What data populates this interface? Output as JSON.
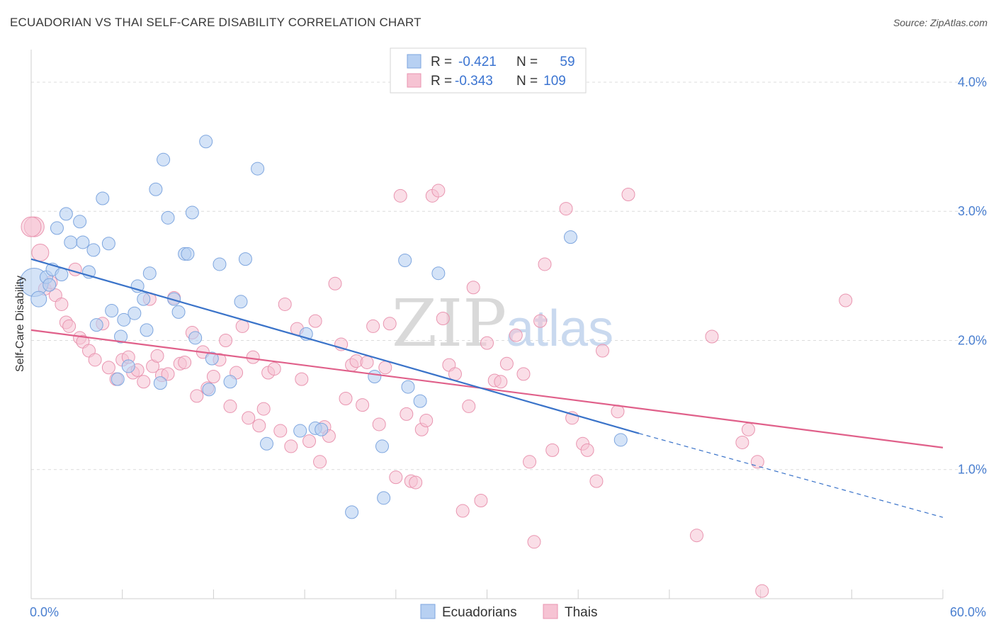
{
  "header": {
    "title": "ECUADORIAN VS THAI SELF-CARE DISABILITY CORRELATION CHART",
    "source": "Source: ZipAtlas.com"
  },
  "legend_top": {
    "rows": [
      {
        "r_label": "R =",
        "r_value": "-0.421",
        "n_label": "N =",
        "n_value": "59"
      },
      {
        "r_label": "R =",
        "r_value": "-0.343",
        "n_label": "N =",
        "n_value": "109"
      }
    ]
  },
  "legend_bottom": {
    "items": [
      "Ecuadorians",
      "Thais"
    ]
  },
  "watermark": {
    "zip": "ZIP",
    "atlas": "atlas"
  },
  "colors": {
    "blue_fill": "#b7d0f2",
    "blue_stroke": "#7ea6df",
    "blue_line": "#3a73c9",
    "pink_fill": "#f6c3d3",
    "pink_stroke": "#e995b0",
    "pink_line": "#e0608a",
    "grid": "#dcdcdc",
    "tick_label": "#4a7fd0"
  },
  "chart_data": {
    "type": "scatter",
    "title": "ECUADORIAN VS THAI SELF-CARE DISABILITY CORRELATION CHART",
    "xlabel": "",
    "ylabel": "Self-Care Disability",
    "xlim": [
      0,
      60
    ],
    "ylim": [
      0,
      4.2
    ],
    "x_tick_labels": [
      "0.0%",
      "60.0%"
    ],
    "y_ticks": [
      1.0,
      2.0,
      3.0,
      4.0
    ],
    "y_tick_labels": [
      "1.0%",
      "2.0%",
      "3.0%",
      "4.0%"
    ],
    "grid": "horizontal dashed",
    "legend_position": "top-center",
    "series": [
      {
        "name": "Ecuadorians",
        "R": -0.421,
        "N": 59,
        "trend": {
          "x0": 0,
          "y0": 2.63,
          "x1": 40,
          "y1": 1.28,
          "dashed_to_x": 60,
          "dashed_to_y": 0.63
        },
        "points": [
          [
            0.2,
            2.45
          ],
          [
            0.5,
            2.32
          ],
          [
            1.0,
            2.49
          ],
          [
            1.2,
            2.43
          ],
          [
            1.4,
            2.55
          ],
          [
            1.7,
            2.87
          ],
          [
            2.0,
            2.51
          ],
          [
            2.3,
            2.98
          ],
          [
            2.6,
            2.76
          ],
          [
            3.2,
            2.92
          ],
          [
            3.4,
            2.76
          ],
          [
            3.8,
            2.53
          ],
          [
            4.1,
            2.7
          ],
          [
            4.3,
            2.12
          ],
          [
            4.7,
            3.1
          ],
          [
            5.1,
            2.75
          ],
          [
            5.3,
            2.23
          ],
          [
            5.7,
            1.7
          ],
          [
            5.9,
            2.03
          ],
          [
            6.1,
            2.16
          ],
          [
            6.4,
            1.8
          ],
          [
            6.8,
            2.21
          ],
          [
            7.0,
            2.42
          ],
          [
            7.4,
            2.32
          ],
          [
            7.6,
            2.08
          ],
          [
            7.8,
            2.52
          ],
          [
            8.2,
            3.17
          ],
          [
            8.5,
            1.67
          ],
          [
            8.7,
            3.4
          ],
          [
            9.0,
            2.95
          ],
          [
            9.4,
            2.32
          ],
          [
            9.7,
            2.22
          ],
          [
            10.1,
            2.67
          ],
          [
            10.3,
            2.67
          ],
          [
            10.6,
            2.99
          ],
          [
            10.8,
            2.02
          ],
          [
            11.5,
            3.54
          ],
          [
            11.7,
            1.62
          ],
          [
            11.9,
            1.86
          ],
          [
            12.4,
            2.59
          ],
          [
            13.1,
            1.68
          ],
          [
            13.8,
            2.3
          ],
          [
            14.1,
            2.63
          ],
          [
            14.9,
            3.33
          ],
          [
            15.5,
            1.2
          ],
          [
            17.7,
            1.3
          ],
          [
            18.1,
            2.05
          ],
          [
            18.7,
            1.32
          ],
          [
            19.1,
            1.31
          ],
          [
            21.1,
            0.67
          ],
          [
            22.6,
            1.72
          ],
          [
            23.1,
            1.18
          ],
          [
            23.2,
            0.78
          ],
          [
            24.6,
            2.62
          ],
          [
            24.8,
            1.64
          ],
          [
            25.6,
            1.53
          ],
          [
            26.8,
            2.52
          ],
          [
            35.5,
            2.8
          ],
          [
            38.8,
            1.23
          ]
        ]
      },
      {
        "name": "Thais",
        "R": -0.343,
        "N": 109,
        "trend": {
          "x0": 0,
          "y0": 2.08,
          "x1": 60,
          "y1": 1.17
        },
        "points": [
          [
            0.2,
            2.88
          ],
          [
            0.6,
            2.68
          ],
          [
            0.9,
            2.4
          ],
          [
            1.3,
            2.45
          ],
          [
            1.6,
            2.35
          ],
          [
            2.0,
            2.28
          ],
          [
            2.3,
            2.14
          ],
          [
            2.5,
            2.11
          ],
          [
            2.9,
            2.55
          ],
          [
            3.2,
            2.02
          ],
          [
            3.4,
            1.99
          ],
          [
            3.8,
            1.92
          ],
          [
            4.2,
            1.85
          ],
          [
            4.7,
            2.13
          ],
          [
            5.1,
            1.79
          ],
          [
            5.6,
            1.7
          ],
          [
            6.0,
            1.85
          ],
          [
            6.4,
            1.87
          ],
          [
            6.7,
            1.75
          ],
          [
            7.0,
            1.77
          ],
          [
            7.4,
            1.68
          ],
          [
            7.8,
            2.32
          ],
          [
            8.0,
            1.8
          ],
          [
            8.3,
            1.88
          ],
          [
            8.6,
            1.73
          ],
          [
            9.0,
            1.74
          ],
          [
            9.4,
            2.33
          ],
          [
            9.8,
            1.82
          ],
          [
            10.1,
            1.83
          ],
          [
            10.6,
            2.06
          ],
          [
            10.9,
            1.57
          ],
          [
            11.3,
            1.91
          ],
          [
            11.6,
            1.63
          ],
          [
            12.0,
            1.72
          ],
          [
            12.4,
            1.85
          ],
          [
            12.8,
            2.0
          ],
          [
            13.1,
            1.49
          ],
          [
            13.5,
            1.75
          ],
          [
            13.9,
            2.11
          ],
          [
            14.3,
            1.4
          ],
          [
            14.6,
            1.87
          ],
          [
            15.0,
            1.34
          ],
          [
            15.3,
            1.47
          ],
          [
            15.6,
            1.75
          ],
          [
            16.0,
            1.78
          ],
          [
            16.4,
            1.3
          ],
          [
            16.7,
            2.28
          ],
          [
            17.1,
            1.18
          ],
          [
            17.5,
            2.09
          ],
          [
            17.8,
            1.7
          ],
          [
            18.3,
            1.22
          ],
          [
            18.7,
            2.15
          ],
          [
            19.0,
            1.06
          ],
          [
            19.3,
            1.33
          ],
          [
            19.6,
            1.26
          ],
          [
            20.0,
            2.44
          ],
          [
            20.4,
            1.97
          ],
          [
            20.7,
            1.55
          ],
          [
            21.1,
            1.81
          ],
          [
            21.4,
            1.84
          ],
          [
            21.8,
            1.5
          ],
          [
            22.1,
            1.83
          ],
          [
            22.5,
            2.11
          ],
          [
            22.9,
            1.35
          ],
          [
            23.3,
            1.79
          ],
          [
            23.6,
            2.13
          ],
          [
            24.0,
            0.94
          ],
          [
            24.3,
            3.12
          ],
          [
            24.7,
            1.43
          ],
          [
            25.0,
            0.91
          ],
          [
            25.3,
            0.9
          ],
          [
            25.7,
            1.31
          ],
          [
            26.0,
            1.38
          ],
          [
            26.4,
            3.12
          ],
          [
            26.8,
            3.16
          ],
          [
            27.1,
            2.17
          ],
          [
            27.5,
            1.81
          ],
          [
            27.9,
            1.74
          ],
          [
            28.4,
            0.68
          ],
          [
            28.8,
            1.49
          ],
          [
            29.1,
            2.41
          ],
          [
            29.6,
            0.76
          ],
          [
            30.0,
            1.98
          ],
          [
            30.5,
            1.69
          ],
          [
            30.9,
            1.68
          ],
          [
            31.3,
            1.82
          ],
          [
            31.9,
            2.04
          ],
          [
            32.4,
            1.74
          ],
          [
            32.8,
            1.06
          ],
          [
            33.1,
            0.44
          ],
          [
            33.5,
            2.15
          ],
          [
            33.8,
            2.59
          ],
          [
            34.3,
            1.15
          ],
          [
            35.2,
            3.02
          ],
          [
            35.6,
            1.4
          ],
          [
            36.3,
            1.2
          ],
          [
            36.6,
            1.15
          ],
          [
            37.2,
            0.91
          ],
          [
            37.6,
            1.92
          ],
          [
            38.6,
            1.45
          ],
          [
            39.3,
            3.13
          ],
          [
            43.8,
            0.49
          ],
          [
            44.8,
            2.03
          ],
          [
            46.8,
            1.21
          ],
          [
            47.2,
            1.31
          ],
          [
            47.8,
            1.06
          ],
          [
            48.1,
            0.06
          ],
          [
            53.6,
            2.31
          ],
          [
            0.0,
            2.88
          ]
        ]
      }
    ]
  }
}
